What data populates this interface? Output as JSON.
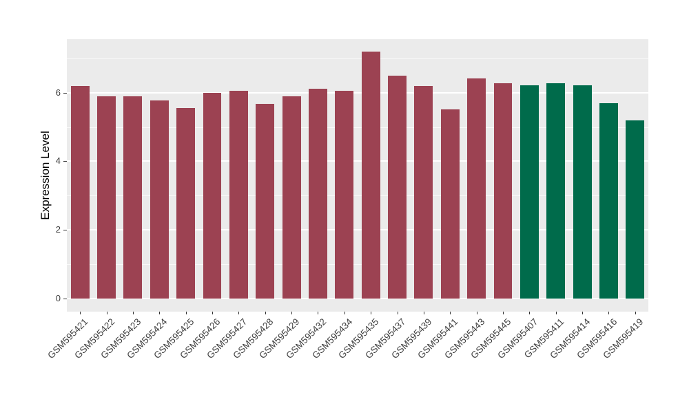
{
  "chart_data": {
    "type": "bar",
    "title": "",
    "xlabel": "",
    "ylabel": "Expression Level",
    "yticks": [
      0,
      2,
      4,
      6
    ],
    "yticks_minor": [
      1,
      3,
      5,
      7
    ],
    "ylim": [
      0,
      7.55
    ],
    "grid": true,
    "legend": false,
    "categories": [
      "GSM595421",
      "GSM595422",
      "GSM595423",
      "GSM595424",
      "GSM595425",
      "GSM595426",
      "GSM595427",
      "GSM595428",
      "GSM595429",
      "GSM595432",
      "GSM595434",
      "GSM595435",
      "GSM595437",
      "GSM595439",
      "GSM595441",
      "GSM595443",
      "GSM595445",
      "GSM595407",
      "GSM595411",
      "GSM595414",
      "GSM595416",
      "GSM595419"
    ],
    "values": [
      6.19,
      5.9,
      5.9,
      5.77,
      5.55,
      6.0,
      6.06,
      5.67,
      5.9,
      6.12,
      6.05,
      7.19,
      6.5,
      6.2,
      5.52,
      6.42,
      6.28,
      6.21,
      6.27,
      6.22,
      5.7,
      5.19
    ],
    "bar_colors": [
      "#9C4252",
      "#9C4252",
      "#9C4252",
      "#9C4252",
      "#9C4252",
      "#9C4252",
      "#9C4252",
      "#9C4252",
      "#9C4252",
      "#9C4252",
      "#9C4252",
      "#9C4252",
      "#9C4252",
      "#9C4252",
      "#9C4252",
      "#9C4252",
      "#9C4252",
      "#006B4B",
      "#006B4B",
      "#006B4B",
      "#006B4B",
      "#006B4B"
    ],
    "group_colors": {
      "red_group": "#9C4252",
      "green_group": "#006B4B"
    }
  },
  "theme": {
    "panel_bg": "#EBEBEB",
    "grid_color": "#FFFFFF",
    "axis_text_color": "#404040",
    "tick_mark_color": "#333333",
    "title_text_color": "#000000"
  }
}
